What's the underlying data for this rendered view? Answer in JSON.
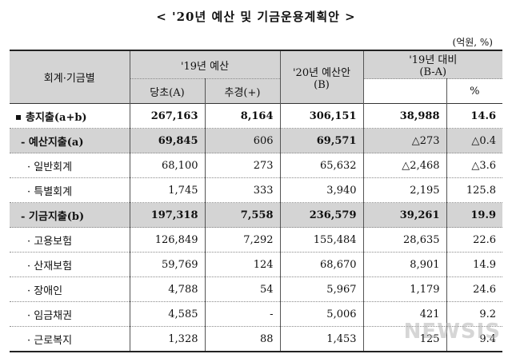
{
  "title": "< '20년 예산 및 기금운용계획안 >",
  "unit": "(억원, %)",
  "headers": {
    "category": "회계·기금별",
    "budget19": "'19년 예산",
    "initial": "당초(A)",
    "supplementary": "추경(+)",
    "budget20": "'20년 예산안",
    "budget20_sub": "(B)",
    "compare": "'19년 대비",
    "compare_sub": "(B-A)",
    "pct": "%"
  },
  "rows": [
    {
      "label": "총지출(a+b)",
      "initial": "267,163",
      "supp": "8,164",
      "b20": "306,151",
      "diff": "38,988",
      "pct": "14.6"
    },
    {
      "label": "- 예산지출(a)",
      "initial": "69,845",
      "supp": "606",
      "b20": "69,571",
      "diff": "△273",
      "pct": "△0.4"
    },
    {
      "label": "· 일반회계",
      "initial": "68,100",
      "supp": "273",
      "b20": "65,632",
      "diff": "△2,468",
      "pct": "△3.6"
    },
    {
      "label": "· 특별회계",
      "initial": "1,745",
      "supp": "333",
      "b20": "3,940",
      "diff": "2,195",
      "pct": "125.8"
    },
    {
      "label": "- 기금지출(b)",
      "initial": "197,318",
      "supp": "7,558",
      "b20": "236,579",
      "diff": "39,261",
      "pct": "19.9"
    },
    {
      "label": "· 고용보험",
      "initial": "126,849",
      "supp": "7,292",
      "b20": "155,484",
      "diff": "28,635",
      "pct": "22.6"
    },
    {
      "label": "· 산재보험",
      "initial": "59,769",
      "supp": "124",
      "b20": "68,670",
      "diff": "8,901",
      "pct": "14.9"
    },
    {
      "label": "· 장애인",
      "initial": "4,788",
      "supp": "54",
      "b20": "5,967",
      "diff": "1,179",
      "pct": "24.6"
    },
    {
      "label": "· 임금채권",
      "initial": "4,585",
      "supp": "-",
      "b20": "5,006",
      "diff": "421",
      "pct": "9.2"
    },
    {
      "label": "· 근로복지",
      "initial": "1,328",
      "supp": "88",
      "b20": "1,453",
      "diff": "125",
      "pct": "9.4"
    }
  ],
  "watermark": "NEWSIS"
}
